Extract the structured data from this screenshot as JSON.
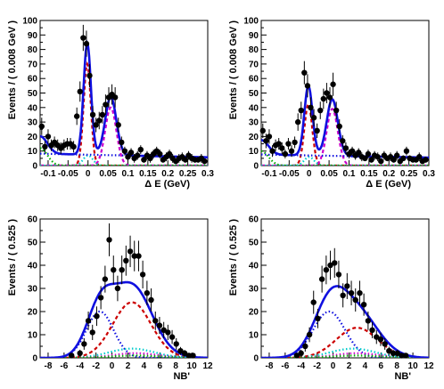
{
  "chart_data": [
    {
      "type": "scatter",
      "xlabel": "Δ E (GeV)",
      "ylabel": "Events / ( 0.008 GeV )",
      "xlim": [
        -0.12,
        0.3
      ],
      "ylim": [
        0,
        100
      ],
      "xticks": [
        -0.1,
        -0.05,
        0,
        0.05,
        0.1,
        0.15,
        0.2,
        0.25,
        0.3
      ],
      "xtick_labels": [
        "-0.1",
        "-0.05",
        "0",
        "0.05",
        "0.1",
        "0.15",
        "0.2",
        "0.25",
        "0.3"
      ],
      "yticks": [
        0,
        10,
        20,
        30,
        40,
        50,
        60,
        70,
        80,
        90,
        100
      ],
      "ytick_labels": [
        "0",
        "10",
        "20",
        "30",
        "40",
        "50",
        "60",
        "70",
        "80",
        "90",
        "100"
      ],
      "data": {
        "x": [
          -0.116,
          -0.108,
          -0.1,
          -0.092,
          -0.084,
          -0.076,
          -0.068,
          -0.06,
          -0.052,
          -0.044,
          -0.036,
          -0.028,
          -0.02,
          -0.012,
          -0.004,
          0.004,
          0.012,
          0.02,
          0.028,
          0.036,
          0.044,
          0.052,
          0.06,
          0.068,
          0.076,
          0.084,
          0.092,
          0.1,
          0.108,
          0.116,
          0.124,
          0.132,
          0.14,
          0.148,
          0.156,
          0.164,
          0.172,
          0.18,
          0.188,
          0.196,
          0.204,
          0.212,
          0.22,
          0.228,
          0.236,
          0.244,
          0.252,
          0.26,
          0.268,
          0.276,
          0.284,
          0.292
        ],
        "y": [
          27,
          13,
          20,
          14,
          16,
          14,
          12,
          14,
          15,
          15,
          13,
          34,
          51,
          88,
          84,
          62,
          35,
          28,
          31,
          35,
          42,
          47,
          49,
          47,
          28,
          16,
          10,
          6,
          9,
          5,
          7,
          11,
          4,
          7,
          5,
          8,
          10,
          8,
          4,
          6,
          8,
          5,
          3,
          5,
          6,
          4,
          7,
          5,
          4,
          4,
          5,
          3
        ],
        "yerr": [
          6,
          4,
          5,
          4,
          4,
          4,
          4,
          4,
          4,
          4,
          4,
          6,
          7,
          9,
          9,
          8,
          6,
          5,
          6,
          6,
          7,
          7,
          7,
          7,
          5,
          4,
          3,
          3,
          3,
          3,
          3,
          3,
          2,
          3,
          3,
          3,
          3,
          3,
          2,
          3,
          3,
          3,
          2,
          3,
          3,
          2,
          3,
          3,
          2,
          2,
          3,
          2
        ]
      },
      "components": {
        "total": {
          "color": "#1010e0",
          "style": "solid"
        },
        "peak1": {
          "color": "#cc0000",
          "style": "dash",
          "mu": -0.002,
          "sigma": 0.009,
          "amp": 70
        },
        "peak2": {
          "color": "#cc00cc",
          "style": "dash",
          "mu": 0.057,
          "sigma": 0.014,
          "amp": 40
        },
        "cyan": {
          "color": "#00cccc",
          "style": "dot",
          "mu": 0.0,
          "sigma": 0.012,
          "amp": 7
        },
        "green": {
          "color": "#00aa00",
          "style": "dot",
          "mu": -0.12,
          "sigma": 0.018,
          "amp": 12
        },
        "bkg": {
          "color": "#1010e0",
          "style": "dot",
          "a": 7.5,
          "b": -6
        }
      }
    },
    {
      "type": "scatter",
      "xlabel": "Δ E (GeV)",
      "ylabel": "Events / ( 0.008 GeV )",
      "xlim": [
        -0.12,
        0.3
      ],
      "ylim": [
        0,
        100
      ],
      "xticks": [
        -0.1,
        -0.05,
        0,
        0.05,
        0.1,
        0.15,
        0.2,
        0.25,
        0.3
      ],
      "xtick_labels": [
        "-0.1",
        "-0.05",
        "0",
        "0.05",
        "0.1",
        "0.15",
        "0.2",
        "0.25",
        "0.3"
      ],
      "yticks": [
        0,
        10,
        20,
        30,
        40,
        50,
        60,
        70,
        80,
        90,
        100
      ],
      "ytick_labels": [
        "0",
        "10",
        "20",
        "30",
        "40",
        "50",
        "60",
        "70",
        "80",
        "90",
        "100"
      ],
      "data": {
        "x": [
          -0.116,
          -0.108,
          -0.1,
          -0.092,
          -0.084,
          -0.076,
          -0.068,
          -0.06,
          -0.052,
          -0.044,
          -0.036,
          -0.028,
          -0.02,
          -0.012,
          -0.004,
          0.004,
          0.012,
          0.02,
          0.028,
          0.036,
          0.044,
          0.052,
          0.06,
          0.068,
          0.076,
          0.084,
          0.092,
          0.1,
          0.108,
          0.116,
          0.124,
          0.132,
          0.14,
          0.148,
          0.156,
          0.164,
          0.172,
          0.18,
          0.188,
          0.196,
          0.204,
          0.212,
          0.22,
          0.228,
          0.236,
          0.244,
          0.252,
          0.26,
          0.268,
          0.276,
          0.284,
          0.292
        ],
        "y": [
          24,
          17,
          20,
          10,
          14,
          15,
          12,
          8,
          15,
          10,
          16,
          30,
          38,
          64,
          55,
          40,
          33,
          24,
          38,
          46,
          50,
          47,
          56,
          38,
          27,
          17,
          12,
          8,
          10,
          7,
          9,
          6,
          5,
          8,
          4,
          7,
          6,
          3,
          7,
          5,
          6,
          4,
          7,
          3,
          5,
          10,
          5,
          4,
          4,
          6,
          3,
          4
        ],
        "yerr": [
          5,
          5,
          5,
          4,
          4,
          4,
          4,
          3,
          4,
          4,
          4,
          6,
          6,
          8,
          8,
          7,
          6,
          5,
          6,
          7,
          7,
          7,
          8,
          6,
          5,
          4,
          4,
          3,
          3,
          3,
          3,
          3,
          2,
          3,
          2,
          3,
          3,
          2,
          3,
          2,
          3,
          2,
          3,
          2,
          2,
          3,
          2,
          2,
          2,
          3,
          2,
          2
        ]
      },
      "components": {
        "total": {
          "color": "#1010e0",
          "style": "solid"
        },
        "peak1": {
          "color": "#cc0000",
          "style": "dash",
          "mu": -0.002,
          "sigma": 0.01,
          "amp": 42
        },
        "peak2": {
          "color": "#cc00cc",
          "style": "dash",
          "mu": 0.058,
          "sigma": 0.014,
          "amp": 39
        },
        "cyan": {
          "color": "#00cccc",
          "style": "dot",
          "mu": 0.0,
          "sigma": 0.012,
          "amp": 6
        },
        "green": {
          "color": "#00aa00",
          "style": "dot",
          "mu": -0.12,
          "sigma": 0.018,
          "amp": 10
        },
        "bkg": {
          "color": "#1010e0",
          "style": "dot",
          "a": 7.0,
          "b": -5
        }
      }
    },
    {
      "type": "scatter",
      "xlabel": "NB'",
      "ylabel": "Events / ( 0.525 )",
      "xlim": [
        -9,
        12
      ],
      "ylim": [
        0,
        60
      ],
      "xticks": [
        -8,
        -6,
        -4,
        -2,
        0,
        2,
        4,
        6,
        8,
        10,
        12
      ],
      "xtick_labels": [
        "-8",
        "-6",
        "-4",
        "-2",
        "0",
        "2",
        "4",
        "6",
        "8",
        "10",
        "12"
      ],
      "yticks": [
        0,
        10,
        20,
        30,
        40,
        50,
        60
      ],
      "ytick_labels": [
        "0",
        "10",
        "20",
        "30",
        "40",
        "50",
        "60"
      ],
      "data": {
        "x": [
          -8.74,
          -8.21,
          -7.69,
          -7.16,
          -6.64,
          -6.11,
          -5.59,
          -5.06,
          -4.54,
          -4.01,
          -3.49,
          -2.96,
          -2.44,
          -1.91,
          -1.39,
          -0.86,
          -0.34,
          0.19,
          0.71,
          1.24,
          1.76,
          2.29,
          2.81,
          3.34,
          3.86,
          4.39,
          4.91,
          5.44,
          5.96,
          6.49,
          7.01,
          7.54,
          8.06,
          8.59,
          9.11,
          9.64,
          10.16,
          10.69,
          11.21,
          11.74
        ],
        "y": [
          0,
          0,
          0,
          0,
          0,
          0,
          0,
          1,
          0,
          2,
          6,
          16,
          11,
          18,
          26,
          34,
          51,
          38,
          30,
          38,
          42,
          46,
          44,
          44,
          36,
          28,
          25,
          16,
          14,
          12,
          11,
          9,
          6,
          3,
          2,
          1,
          1,
          0,
          0,
          0
        ],
        "yerr": [
          0,
          0,
          0,
          0,
          0,
          0,
          0,
          1,
          0,
          1.5,
          2.5,
          4,
          3.3,
          4.2,
          5,
          5.8,
          7.1,
          6.2,
          5.5,
          6.2,
          6.5,
          6.8,
          6.6,
          6.6,
          6,
          5.3,
          5,
          4,
          3.7,
          3.5,
          3.3,
          3,
          2.5,
          1.7,
          1.4,
          1,
          1,
          0,
          0,
          0
        ]
      },
      "components": {
        "total": {
          "color": "#1010e0",
          "style": "solid"
        },
        "blue": {
          "color": "#1010e0",
          "style": "dot",
          "mu": -1.5,
          "sigma": 1.7,
          "amp": 20
        },
        "red": {
          "color": "#cc0000",
          "style": "dash",
          "mu": 2.5,
          "sigma": 2.4,
          "amp": 24
        },
        "cyan": {
          "color": "#00cccc",
          "style": "dot",
          "mu": 2.5,
          "sigma": 2.8,
          "amp": 4
        },
        "magenta": {
          "color": "#cc00cc",
          "style": "dot",
          "mu": 3.0,
          "sigma": 2.8,
          "amp": 2
        },
        "green": {
          "color": "#00aa00",
          "style": "dot",
          "mu": 3.0,
          "sigma": 3.0,
          "amp": 1
        }
      }
    },
    {
      "type": "scatter",
      "xlabel": "NB'",
      "ylabel": "Events / ( 0.525 )",
      "xlim": [
        -9,
        12
      ],
      "ylim": [
        0,
        60
      ],
      "xticks": [
        -8,
        -6,
        -4,
        -2,
        0,
        2,
        4,
        6,
        8,
        10,
        12
      ],
      "xtick_labels": [
        "-8",
        "-6",
        "-4",
        "-2",
        "0",
        "2",
        "4",
        "6",
        "8",
        "10",
        "12"
      ],
      "yticks": [
        0,
        10,
        20,
        30,
        40,
        50,
        60
      ],
      "ytick_labels": [
        "0",
        "10",
        "20",
        "30",
        "40",
        "50",
        "60"
      ],
      "data": {
        "x": [
          -8.74,
          -8.21,
          -7.69,
          -7.16,
          -6.64,
          -6.11,
          -5.59,
          -5.06,
          -4.54,
          -4.01,
          -3.49,
          -2.96,
          -2.44,
          -1.91,
          -1.39,
          -0.86,
          -0.34,
          0.19,
          0.71,
          1.24,
          1.76,
          2.29,
          2.81,
          3.34,
          3.86,
          4.39,
          4.91,
          5.44,
          5.96,
          6.49,
          7.01,
          7.54,
          8.06,
          8.59,
          9.11,
          9.64,
          10.16,
          10.69,
          11.21,
          11.74
        ],
        "y": [
          0,
          0,
          0,
          0,
          0,
          0,
          0,
          0,
          1,
          2,
          5,
          10,
          24,
          17,
          34,
          38,
          40,
          41,
          36,
          27,
          31,
          28,
          25,
          28,
          23,
          16,
          12,
          9,
          8,
          6,
          3,
          2,
          2,
          1,
          1,
          0,
          0,
          0,
          0,
          0
        ],
        "yerr": [
          0,
          0,
          0,
          0,
          0,
          0,
          0,
          0,
          1,
          1.5,
          2.3,
          3.2,
          5,
          4.2,
          5.8,
          6.2,
          6.3,
          6.4,
          6,
          5.2,
          5.6,
          5.3,
          5,
          5.3,
          4.8,
          4,
          3.5,
          3,
          2.9,
          2.5,
          1.8,
          1.5,
          1.5,
          1,
          1,
          0,
          0,
          0,
          0,
          0
        ]
      },
      "components": {
        "total": {
          "color": "#1010e0",
          "style": "solid"
        },
        "blue": {
          "color": "#1010e0",
          "style": "dot",
          "mu": -0.5,
          "sigma": 2.0,
          "amp": 20
        },
        "red": {
          "color": "#cc0000",
          "style": "dash",
          "mu": 3.0,
          "sigma": 2.6,
          "amp": 13
        },
        "cyan": {
          "color": "#00cccc",
          "style": "dot",
          "mu": 2.5,
          "sigma": 2.8,
          "amp": 4
        },
        "magenta": {
          "color": "#cc00cc",
          "style": "dot",
          "mu": 3.0,
          "sigma": 2.8,
          "amp": 2
        },
        "green": {
          "color": "#00aa00",
          "style": "dot",
          "mu": 3.0,
          "sigma": 3.0,
          "amp": 1
        }
      }
    }
  ]
}
